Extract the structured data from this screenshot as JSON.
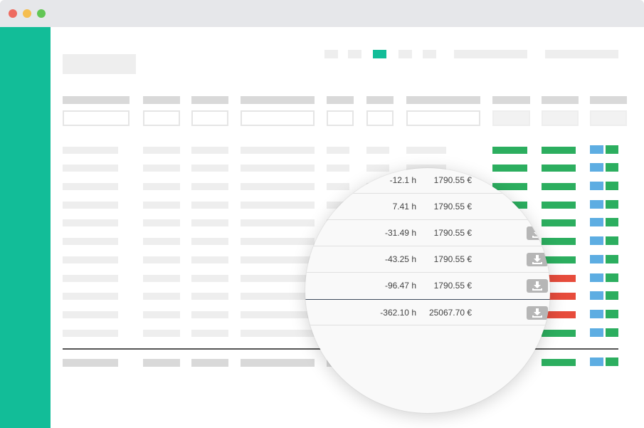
{
  "window": {
    "buttons": [
      "close",
      "minimize",
      "maximize"
    ],
    "sidebar_color": "#12bd98"
  },
  "pagination": {
    "active_index": 2,
    "active_color": "#12bd98"
  },
  "table": {
    "status_colors": {
      "ok": "#2cae5f",
      "warn": "#e74c3c",
      "info": "#5dade2"
    },
    "status_rows": [
      [
        "ok",
        "ok"
      ],
      [
        "ok",
        "ok"
      ],
      [
        "ok",
        "ok"
      ],
      [
        "ok",
        "ok"
      ],
      [
        "ok",
        "ok"
      ],
      [
        "ok",
        "ok"
      ],
      [
        "ok",
        "ok"
      ],
      [
        "ok",
        "warn"
      ],
      [
        "ok",
        "warn"
      ],
      [
        "ok",
        "warn"
      ],
      [
        "ok",
        "ok"
      ],
      [
        "ok",
        "ok"
      ]
    ]
  },
  "magnifier": {
    "rows": [
      {
        "hours": "-12.1 h",
        "amount": "1790.55 €",
        "download": false
      },
      {
        "hours": "7.41 h",
        "amount": "1790.55 €",
        "download": false
      },
      {
        "hours": "-31.49 h",
        "amount": "1790.55 €",
        "download": true
      },
      {
        "hours": "-43.25 h",
        "amount": "1790.55 €",
        "download": true
      },
      {
        "hours": "-96.47 h",
        "amount": "1790.55 €",
        "download": true
      }
    ],
    "total": {
      "hours": "-362.10 h",
      "amount": "25067.70 €",
      "download": true
    },
    "icons": {
      "download": "download-icon"
    }
  }
}
